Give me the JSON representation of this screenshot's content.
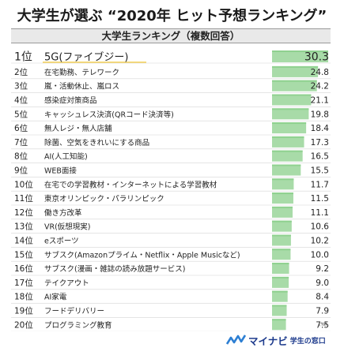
{
  "chart_data": {
    "type": "bar",
    "title": "大学生が選ぶ “2020年 ヒット予想ランキング”",
    "subtitle": "大学生ランキング（複数回答）",
    "unit": "(%)",
    "ranks": [
      "1位",
      "2位",
      "3位",
      "4位",
      "5位",
      "6位",
      "7位",
      "8位",
      "9位",
      "10位",
      "11位",
      "12位",
      "13位",
      "14位",
      "15位",
      "16位",
      "17位",
      "18位",
      "19位",
      "20位"
    ],
    "categories": [
      "5G(ファイブジー)",
      "在宅勤務、テレワーク",
      "嵐・活動休止、嵐ロス",
      "感染症対策商品",
      "キャッシュレス決済(QRコード決済等)",
      "無人レジ・無人店舗",
      "除菌、空気をきれいにする商品",
      "AI(人工知能)",
      "WEB面接",
      "在宅での学習教材・インターネットによる学習教材",
      "東京オリンピック・パラリンピック",
      "働き方改革",
      "VR(仮想現実)",
      "eスポーツ",
      "サブスク(Amazonプライム・Netflix・Apple Musicなど)",
      "サブスク(漫画・雑誌の読み放題サービス)",
      "テイクアウト",
      "AI家電",
      "フードデリバリー",
      "プログラミング教育"
    ],
    "values": [
      30.3,
      24.8,
      24.2,
      21.1,
      19.8,
      18.4,
      17.3,
      16.5,
      15.5,
      11.7,
      11.5,
      11.1,
      10.6,
      10.2,
      10.0,
      9.2,
      9.0,
      8.4,
      7.9,
      7.5
    ],
    "value_labels": [
      "30.3",
      "24.8",
      "24.2",
      "21.1",
      "19.8",
      "18.4",
      "17.3",
      "16.5",
      "15.5",
      "11.7",
      "11.5",
      "11.1",
      "10.6",
      "10.2",
      "10.0",
      "9.2",
      "9.0",
      "8.4",
      "7.9",
      "7.5"
    ],
    "xlim": [
      0,
      30.3
    ],
    "grid": false,
    "colors": {
      "bar": "#a8dba8",
      "bar_top": "#8fd18f",
      "highlight": "#f5d76e"
    }
  },
  "footer": {
    "brand": "マイナビ",
    "sub": "学生の窓口"
  }
}
